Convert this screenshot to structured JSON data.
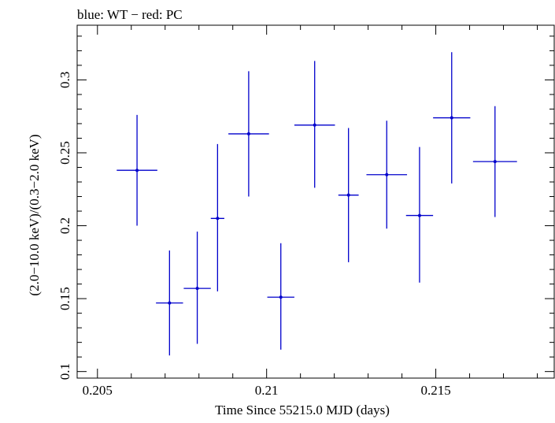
{
  "chart_data": {
    "type": "scatter",
    "title": "blue: WT − red: PC",
    "xlabel": "Time Since 55215.0 MJD (days)",
    "ylabel": "(2.0−10.0 keV)/(0.3−2.0 keV)",
    "xlim": [
      0.2044,
      0.2185
    ],
    "ylim": [
      0.0955,
      0.3375
    ],
    "xticks": [
      {
        "value": 0.205,
        "label": "0.205"
      },
      {
        "value": 0.21,
        "label": "0.21"
      },
      {
        "value": 0.215,
        "label": "0.215"
      }
    ],
    "yticks": [
      {
        "value": 0.1,
        "label": "0.1"
      },
      {
        "value": 0.15,
        "label": "0.15"
      },
      {
        "value": 0.2,
        "label": "0.2"
      },
      {
        "value": 0.25,
        "label": "0.25"
      },
      {
        "value": 0.3,
        "label": "0.3"
      }
    ],
    "x_minor_step": 0.001,
    "y_minor_step": 0.01,
    "grid": false,
    "series": [
      {
        "color": "#0000cc",
        "points": [
          {
            "x": 0.20617,
            "y": 0.238,
            "xerr": 0.0006,
            "yerr_lo": 0.038,
            "yerr_hi": 0.038
          },
          {
            "x": 0.20713,
            "y": 0.147,
            "xerr": 0.0004,
            "yerr_lo": 0.036,
            "yerr_hi": 0.036
          },
          {
            "x": 0.20795,
            "y": 0.157,
            "xerr": 0.0004,
            "yerr_lo": 0.038,
            "yerr_hi": 0.039
          },
          {
            "x": 0.20855,
            "y": 0.205,
            "xerr": 0.0002,
            "yerr_lo": 0.05,
            "yerr_hi": 0.051
          },
          {
            "x": 0.20947,
            "y": 0.263,
            "xerr": 0.0006,
            "yerr_lo": 0.043,
            "yerr_hi": 0.043
          },
          {
            "x": 0.21042,
            "y": 0.151,
            "xerr": 0.0004,
            "yerr_lo": 0.036,
            "yerr_hi": 0.037
          },
          {
            "x": 0.21142,
            "y": 0.269,
            "xerr": 0.0006,
            "yerr_lo": 0.043,
            "yerr_hi": 0.044
          },
          {
            "x": 0.21242,
            "y": 0.221,
            "xerr": 0.0003,
            "yerr_lo": 0.046,
            "yerr_hi": 0.046
          },
          {
            "x": 0.21355,
            "y": 0.235,
            "xerr": 0.0006,
            "yerr_lo": 0.037,
            "yerr_hi": 0.037
          },
          {
            "x": 0.21452,
            "y": 0.207,
            "xerr": 0.0004,
            "yerr_lo": 0.046,
            "yerr_hi": 0.047
          },
          {
            "x": 0.21547,
            "y": 0.274,
            "xerr": 0.00055,
            "yerr_lo": 0.045,
            "yerr_hi": 0.045
          },
          {
            "x": 0.21675,
            "y": 0.244,
            "xerr": 0.00065,
            "yerr_lo": 0.038,
            "yerr_hi": 0.038
          }
        ]
      }
    ]
  }
}
